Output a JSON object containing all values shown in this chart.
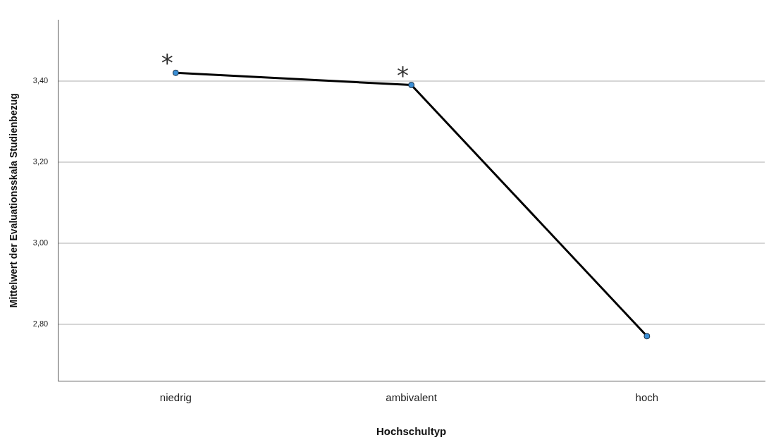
{
  "chart_data": {
    "type": "line",
    "xlabel": "Hochschultyp",
    "ylabel": "Mittelwert der Evaluationsskala Studienbezug",
    "categories": [
      "niedrig",
      "ambivalent",
      "hoch"
    ],
    "series": [
      {
        "color": "#000000",
        "values": [
          3.42,
          3.39,
          2.77
        ]
      }
    ],
    "ylim": [
      2.66,
      3.55
    ],
    "yticks": [
      {
        "value": 2.8,
        "label": "2,80"
      },
      {
        "value": 3.0,
        "label": "3,00"
      },
      {
        "value": 3.2,
        "label": "3,20"
      },
      {
        "value": 3.4,
        "label": "3,40"
      }
    ],
    "grid": "y",
    "marker": "circle",
    "line_style": "solid",
    "legend": false,
    "annotations": [
      {
        "text": "*",
        "x": "niedrig",
        "y": 3.42
      },
      {
        "text": "*",
        "x": "ambivalent",
        "y": 3.39
      }
    ]
  }
}
